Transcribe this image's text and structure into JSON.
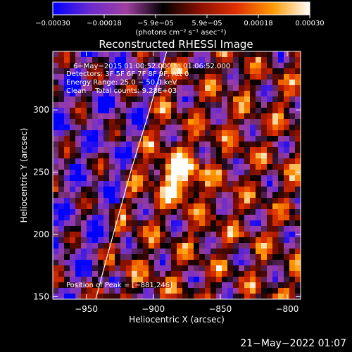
{
  "chart_data": {
    "type": "heatmap",
    "title": "Reconstructed RHESSI Image",
    "xlabel": "Heliocentric X (arcsec)",
    "ylabel": "Heliocentric Y (arcsec)",
    "xlim": [
      -975,
      -790
    ],
    "ylim": [
      148,
      347
    ],
    "xticks": [
      -950,
      -900,
      -850,
      -800
    ],
    "xtick_labels": [
      "−950",
      "−900",
      "−850",
      "−800"
    ],
    "yticks": [
      150,
      200,
      250,
      300
    ],
    "ytick_labels": [
      "150",
      "200",
      "250",
      "300"
    ],
    "colorbar": {
      "min": -0.0003,
      "max": 0.0003,
      "tick_labels": [
        "−0.00030",
        "−0.00018",
        "−5.9e−05",
        "5.9e−05",
        "0.00018",
        "0.00030"
      ],
      "unit_label": "(photons cm⁻² s⁻¹ asec⁻²)",
      "colors": [
        "#0000ff",
        "#6a2ad0",
        "#a040a0",
        "#000000",
        "#8a1000",
        "#e03000",
        "#ff9a00",
        "#ffffff"
      ]
    },
    "annotations": {
      "time_range": "6−May−2015 01:00:52.000 to 01:06:52.000",
      "detectors": "Detectors: 3F 5F 6F 7F 8F 9F, Att 0",
      "energy": "Energy Range: 25.0 − 50.0 keV",
      "clean": "Clean    Total counts: 9.28E+03",
      "peak": "Position of Peak = [−881,246]"
    },
    "peak": {
      "x": -881,
      "y": 246
    },
    "limb_points": [
      [
        -943,
        148
      ],
      [
        -935,
        180
      ],
      [
        -926,
        215
      ],
      [
        -917,
        250
      ],
      [
        -905,
        292
      ],
      [
        -890,
        347
      ]
    ]
  },
  "footer_date": "21−May−2022 01:07"
}
